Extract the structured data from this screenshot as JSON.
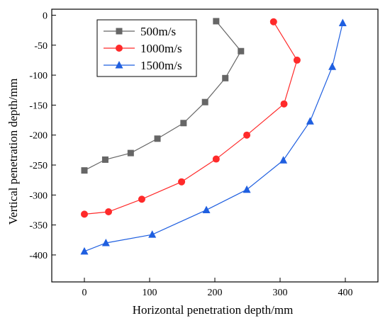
{
  "chart_data": {
    "type": "line",
    "xlabel": "Horizontal penetration depth/mm",
    "ylabel": "Vertical penetration depth/mm",
    "xlim": [
      -50,
      450
    ],
    "ylim": [
      -445,
      10
    ],
    "xticks": [
      0,
      100,
      200,
      300,
      400
    ],
    "yticks": [
      0,
      -50,
      -100,
      -150,
      -200,
      -250,
      -300,
      -350,
      -400
    ],
    "legend_position": "top-left",
    "grid": false,
    "series": [
      {
        "name": "500m/s",
        "color": "#666666",
        "marker": "square",
        "x": [
          202,
          240,
          216,
          185,
          152,
          112,
          71,
          32,
          0
        ],
        "y": [
          -10,
          -60,
          -105,
          -145,
          -180,
          -206,
          -230,
          -241,
          -259
        ]
      },
      {
        "name": "1000m/s",
        "color": "#ff2a2a",
        "marker": "circle",
        "x": [
          290,
          326,
          306,
          249,
          202,
          149,
          88,
          37,
          0
        ],
        "y": [
          -11,
          -75,
          -148,
          -200,
          -240,
          -278,
          -307,
          -328,
          -332
        ]
      },
      {
        "name": "1500m/s",
        "color": "#1f5fe0",
        "marker": "triangle",
        "x": [
          396,
          380,
          346,
          305,
          249,
          187,
          104,
          33,
          0
        ],
        "y": [
          -13,
          -86,
          -177,
          -242,
          -291,
          -325,
          -366,
          -380,
          -394
        ]
      }
    ]
  }
}
